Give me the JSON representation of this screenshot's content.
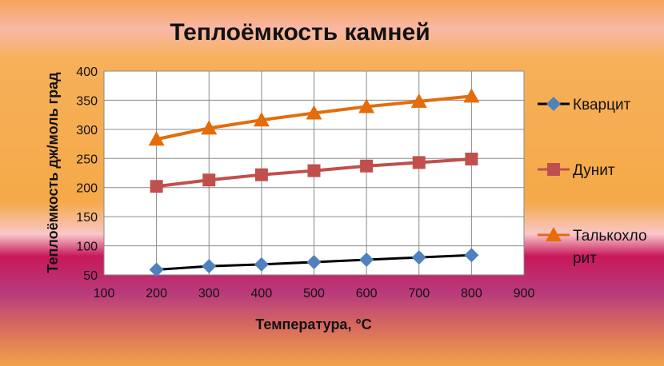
{
  "chart_data": {
    "type": "line",
    "title": "Теплоёмкость камней",
    "xlabel": "Температура, °С",
    "ylabel": "Теплоёмкость дж/моль град",
    "xlim": [
      100,
      900
    ],
    "ylim": [
      50,
      400
    ],
    "xticks": [
      100,
      200,
      300,
      400,
      500,
      600,
      700,
      800,
      900
    ],
    "yticks": [
      50,
      100,
      150,
      200,
      250,
      300,
      350,
      400
    ],
    "grid": true,
    "legend": "right",
    "x": [
      200,
      300,
      400,
      500,
      600,
      700,
      800
    ],
    "series": [
      {
        "name": "Кварцит",
        "values": [
          59,
          65,
          68,
          72,
          76,
          80,
          84
        ],
        "line_color": "#000000",
        "marker_color": "#4f81bd",
        "marker": "diamond"
      },
      {
        "name": "Дунит",
        "values": [
          202,
          213,
          222,
          229,
          237,
          243,
          249
        ],
        "line_color": "#c0504d",
        "marker_color": "#c0504d",
        "marker": "square"
      },
      {
        "name": "Талькохлорит",
        "values": [
          283,
          302,
          316,
          328,
          339,
          348,
          357
        ],
        "line_color": "#e46c0a",
        "marker_color": "#e46c0a",
        "marker": "triangle",
        "legend_lines": [
          "Талькохло",
          "рит"
        ]
      }
    ]
  }
}
